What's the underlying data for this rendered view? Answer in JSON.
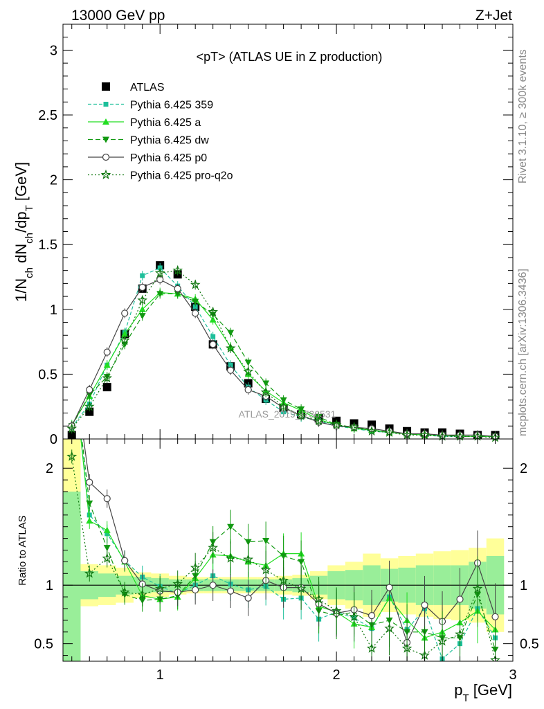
{
  "header": {
    "left": "13000 GeV pp",
    "right": "Z+Jet"
  },
  "side_labels": {
    "rivet": "Rivet 3.1.10, ≥ 300k events",
    "mcplots": "mcplots.cern.ch [arXiv:1306.3436]"
  },
  "watermark": "ATLAS_2019_I736531",
  "chart_data": [
    {
      "type": "scatter",
      "panel": "main",
      "title": "<pT> (ATLAS UE in Z production)",
      "xlabel": "p_T [GeV]",
      "ylabel": "1/N_ch dN_ch/dp_T [GeV]",
      "xlim": [
        0.45,
        3.0
      ],
      "ylim": [
        0,
        3.2
      ],
      "xticks": [
        1,
        2,
        3
      ],
      "yticks": [
        0,
        0.5,
        1,
        1.5,
        2,
        2.5,
        3
      ],
      "ytick_labels": [
        "0",
        "0.5",
        "1",
        "1.5",
        "2",
        "2.5",
        "3"
      ],
      "legend_position": "top-left",
      "x": [
        0.5,
        0.6,
        0.7,
        0.8,
        0.9,
        1.0,
        1.1,
        1.2,
        1.3,
        1.4,
        1.5,
        1.6,
        1.7,
        1.8,
        1.9,
        2.0,
        2.1,
        2.2,
        2.3,
        2.4,
        2.5,
        2.6,
        2.7,
        2.8,
        2.9
      ],
      "series": [
        {
          "name": "ATLAS",
          "color": "#000000",
          "marker": "square",
          "dash": "none",
          "values": [
            0.03,
            0.21,
            0.4,
            0.81,
            1.16,
            1.34,
            1.27,
            1.02,
            0.73,
            0.56,
            0.43,
            0.31,
            0.24,
            0.19,
            0.16,
            0.14,
            0.12,
            0.11,
            0.08,
            0.06,
            0.05,
            0.05,
            0.04,
            0.03,
            0.03
          ]
        },
        {
          "name": "Pythia 6.425 359",
          "color": "#1dbf9a",
          "marker": "smallsquare",
          "dash": "5,3",
          "values": [
            0.09,
            0.27,
            0.57,
            0.82,
            1.26,
            1.32,
            1.18,
            1.02,
            0.79,
            0.57,
            0.4,
            0.3,
            0.21,
            0.17,
            0.14,
            0.1,
            0.08,
            0.06,
            0.05,
            0.04,
            0.03,
            0.02,
            0.02,
            0.02,
            0.02
          ]
        },
        {
          "name": "Pythia 6.425 a",
          "color": "#22dd22",
          "marker": "triangle-up",
          "dash": "none",
          "values": [
            0.11,
            0.33,
            0.57,
            0.81,
            1.0,
            1.13,
            1.12,
            1.08,
            0.92,
            0.71,
            0.5,
            0.37,
            0.28,
            0.22,
            0.15,
            0.11,
            0.08,
            0.07,
            0.05,
            0.04,
            0.03,
            0.03,
            0.02,
            0.02,
            0.02
          ]
        },
        {
          "name": "Pythia 6.425 dw",
          "color": "#119911",
          "marker": "triangle-down",
          "dash": "7,4",
          "values": [
            0.1,
            0.34,
            0.48,
            0.73,
            0.95,
            1.12,
            1.12,
            1.06,
            0.96,
            0.82,
            0.59,
            0.43,
            0.3,
            0.23,
            0.17,
            0.11,
            0.09,
            0.07,
            0.05,
            0.04,
            0.03,
            0.03,
            0.02,
            0.02,
            0.02
          ]
        },
        {
          "name": "Pythia 6.425 p0",
          "color": "#444444",
          "marker": "circle-open",
          "dash": "none",
          "values": [
            0.1,
            0.38,
            0.67,
            0.97,
            1.17,
            1.23,
            1.16,
            0.97,
            0.73,
            0.53,
            0.38,
            0.33,
            0.24,
            0.18,
            0.13,
            0.1,
            0.09,
            0.08,
            0.06,
            0.04,
            0.04,
            0.03,
            0.03,
            0.03,
            0.02
          ]
        },
        {
          "name": "Pythia 6.425 pro-q2o",
          "color": "#117711",
          "marker": "star",
          "dash": "2,3",
          "values": [
            0.08,
            0.25,
            0.47,
            0.76,
            1.07,
            1.28,
            1.3,
            1.19,
            0.98,
            0.7,
            0.52,
            0.36,
            0.25,
            0.18,
            0.14,
            0.11,
            0.09,
            0.06,
            0.05,
            0.03,
            0.03,
            0.02,
            0.02,
            0.02,
            0.01
          ]
        }
      ]
    },
    {
      "type": "line",
      "panel": "ratio",
      "ylabel": "Ratio to ATLAS",
      "xlabel": "p_T [GeV]",
      "xlim": [
        0.45,
        3.0
      ],
      "ylim": [
        0.35,
        2.25
      ],
      "xticks": [
        1,
        2,
        3
      ],
      "yticks": [
        0.5,
        1,
        2
      ],
      "ytick_labels": [
        "0.5",
        "1",
        "2"
      ],
      "reference_line": 1,
      "bands": {
        "x_edges": [
          0.45,
          0.55,
          0.65,
          0.75,
          0.85,
          0.95,
          1.05,
          1.15,
          1.25,
          1.35,
          1.45,
          1.55,
          1.65,
          1.75,
          1.85,
          1.95,
          2.05,
          2.15,
          2.25,
          2.35,
          2.45,
          2.55,
          2.65,
          2.75,
          2.85,
          2.95
        ],
        "yellow_half_widths": [
          2.0,
          0.18,
          0.17,
          0.15,
          0.11,
          0.1,
          0.08,
          0.07,
          0.07,
          0.07,
          0.07,
          0.07,
          0.08,
          0.09,
          0.12,
          0.17,
          0.2,
          0.27,
          0.23,
          0.25,
          0.27,
          0.29,
          0.3,
          0.32,
          0.4,
          0.32
        ],
        "green_half_widths": [
          0.8,
          0.12,
          0.1,
          0.08,
          0.07,
          0.06,
          0.05,
          0.05,
          0.05,
          0.05,
          0.05,
          0.05,
          0.05,
          0.06,
          0.08,
          0.12,
          0.13,
          0.17,
          0.14,
          0.15,
          0.17,
          0.17,
          0.17,
          0.2,
          0.25,
          0.2
        ]
      },
      "x": [
        0.5,
        0.6,
        0.7,
        0.8,
        0.9,
        1.0,
        1.1,
        1.2,
        1.3,
        1.4,
        1.5,
        1.6,
        1.7,
        1.8,
        1.9,
        2.0,
        2.1,
        2.2,
        2.3,
        2.4,
        2.5,
        2.6,
        2.7,
        2.8,
        2.9
      ],
      "series": [
        {
          "name": "Pythia 6.425 359",
          "values": [
            3.0,
            1.6,
            1.44,
            1.21,
            1.07,
            0.99,
            0.93,
            1.0,
            1.08,
            1.01,
            0.96,
            0.99,
            0.88,
            0.89,
            0.71,
            0.77,
            0.72,
            0.63,
            0.9,
            0.62,
            0.8,
            0.37,
            0.5,
            0.8,
            0.55
          ]
        },
        {
          "name": "Pythia 6.425 a",
          "values": [
            3.0,
            1.55,
            1.47,
            1.2,
            0.91,
            0.88,
            0.9,
            1.06,
            1.26,
            1.25,
            1.2,
            1.17,
            1.27,
            1.27,
            0.82,
            0.77,
            0.67,
            0.64,
            0.89,
            0.7,
            0.55,
            0.6,
            0.68,
            0.78,
            0.62
          ]
        },
        {
          "name": "Pythia 6.425 dw",
          "values": [
            3.0,
            1.7,
            1.32,
            0.92,
            0.87,
            0.88,
            0.91,
            1.08,
            1.37,
            1.5,
            1.37,
            1.38,
            1.25,
            1.2,
            0.78,
            0.74,
            0.77,
            0.66,
            0.7,
            0.6,
            0.6,
            0.55,
            0.55,
            0.92,
            0.45
          ]
        },
        {
          "name": "Pythia 6.425 p0",
          "values": [
            3.0,
            1.88,
            1.74,
            1.21,
            1.01,
            0.95,
            0.94,
            0.96,
            1.0,
            0.95,
            0.89,
            1.04,
            0.98,
            0.98,
            0.84,
            0.76,
            0.79,
            0.74,
            0.98,
            0.51,
            0.83,
            0.69,
            0.88,
            1.19,
            0.73
          ]
        },
        {
          "name": "Pythia 6.425 pro-q2o",
          "values": [
            2.1,
            1.1,
            1.23,
            0.94,
            0.92,
            0.97,
            1.01,
            1.15,
            1.32,
            1.23,
            1.22,
            1.13,
            1.04,
            0.97,
            0.88,
            0.78,
            0.73,
            0.46,
            0.63,
            0.46,
            0.4,
            0.52,
            0.58,
            0.97,
            0.36
          ]
        }
      ]
    }
  ]
}
